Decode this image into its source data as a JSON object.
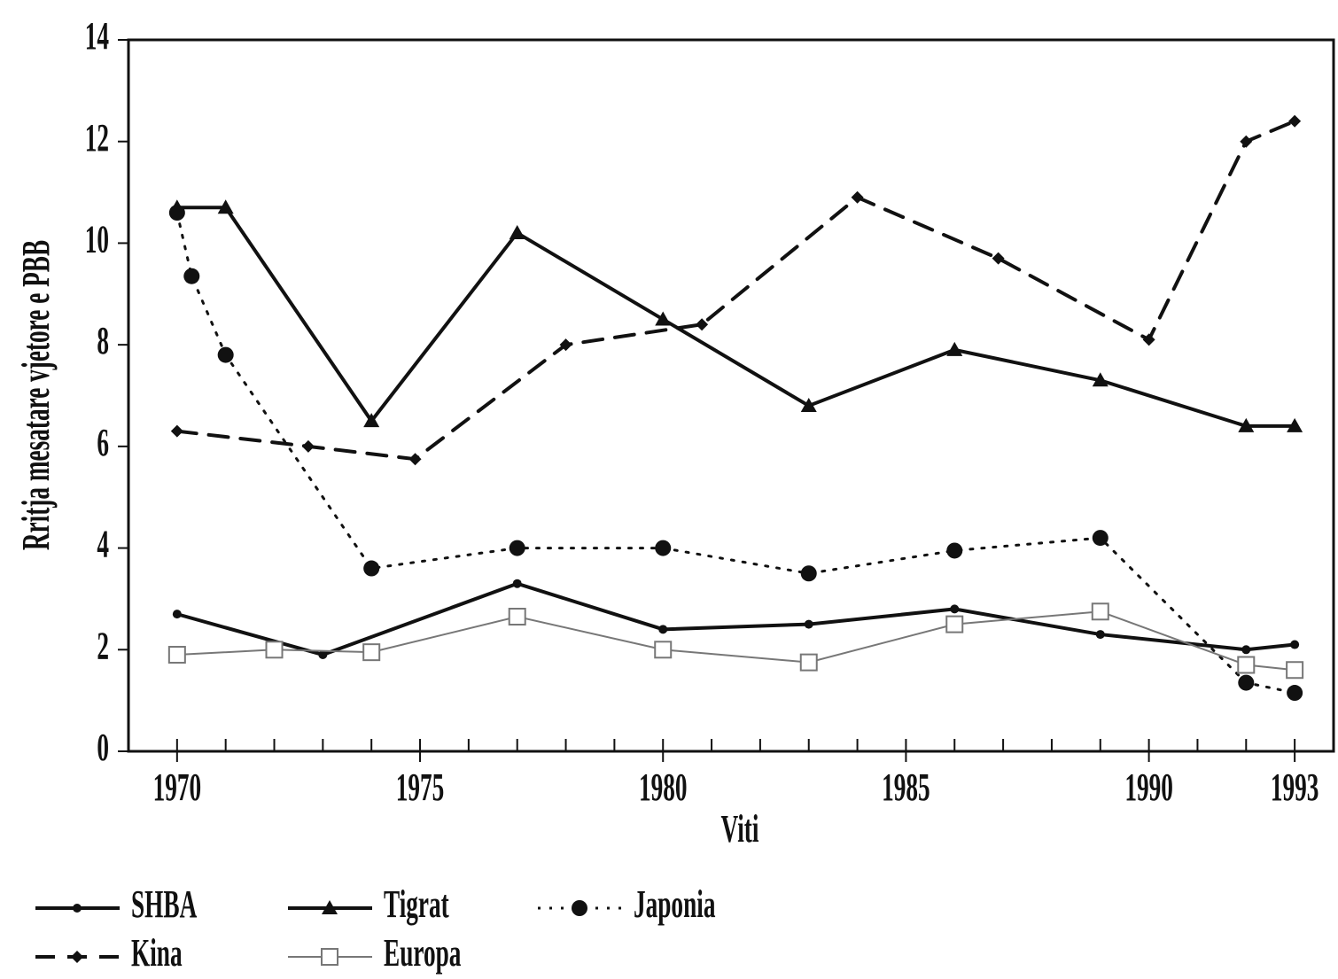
{
  "chart_data": {
    "type": "line",
    "xlabel": "Viti",
    "ylabel": "Rritja mesatare vjetore e PBB",
    "xlim": [
      1969,
      1993.8
    ],
    "ylim": [
      0,
      14
    ],
    "xticks": [
      1970,
      1975,
      1980,
      1985,
      1990,
      1993
    ],
    "xminorticks": [
      1970,
      1971,
      1972,
      1973,
      1974,
      1975,
      1976,
      1977,
      1978,
      1979,
      1980,
      1981,
      1982,
      1983,
      1984,
      1985,
      1986,
      1987,
      1988,
      1989,
      1990,
      1991,
      1992,
      1993
    ],
    "yticks": [
      0,
      2,
      4,
      6,
      8,
      10,
      12,
      14
    ],
    "series": [
      {
        "name": "SHBA",
        "color": "#111111",
        "line": "solid",
        "width": 4,
        "marker": "dot",
        "x": [
          1970,
          1973,
          1977,
          1980,
          1983,
          1986,
          1989,
          1992,
          1993
        ],
        "values": [
          2.7,
          1.9,
          3.3,
          2.4,
          2.5,
          2.8,
          2.3,
          2.0,
          2.1
        ]
      },
      {
        "name": "Tigrat",
        "color": "#111111",
        "line": "solid",
        "width": 4,
        "marker": "triangle",
        "x": [
          1970,
          1971,
          1974,
          1977,
          1980,
          1983,
          1986,
          1989,
          1992,
          1993
        ],
        "values": [
          10.7,
          10.7,
          6.5,
          10.2,
          8.5,
          6.8,
          7.9,
          7.3,
          6.4,
          6.4
        ]
      },
      {
        "name": "Japonia",
        "color": "#111111",
        "line": "dotted",
        "width": 3,
        "marker": "circle",
        "x": [
          1970,
          1970.3,
          1971,
          1974,
          1977,
          1980,
          1983,
          1986,
          1989,
          1992,
          1993
        ],
        "values": [
          10.6,
          9.35,
          7.8,
          3.6,
          4.0,
          4.0,
          3.5,
          3.95,
          4.2,
          1.35,
          1.15
        ]
      },
      {
        "name": "Kina",
        "color": "#111111",
        "line": "dashed",
        "width": 4,
        "marker": "diamond",
        "x": [
          1970,
          1972.7,
          1974.9,
          1978,
          1980.8,
          1984,
          1986.9,
          1990,
          1992,
          1993
        ],
        "values": [
          6.3,
          6.0,
          5.75,
          8.0,
          8.4,
          10.9,
          9.7,
          8.1,
          12.0,
          12.4
        ]
      },
      {
        "name": "Europa",
        "color": "#777777",
        "line": "solid",
        "width": 2,
        "marker": "square",
        "x": [
          1970,
          1972,
          1974,
          1977,
          1980,
          1983,
          1986,
          1989,
          1992,
          1993
        ],
        "values": [
          1.9,
          2.0,
          1.95,
          2.65,
          2.0,
          1.75,
          2.5,
          2.75,
          1.7,
          1.6
        ]
      }
    ]
  }
}
